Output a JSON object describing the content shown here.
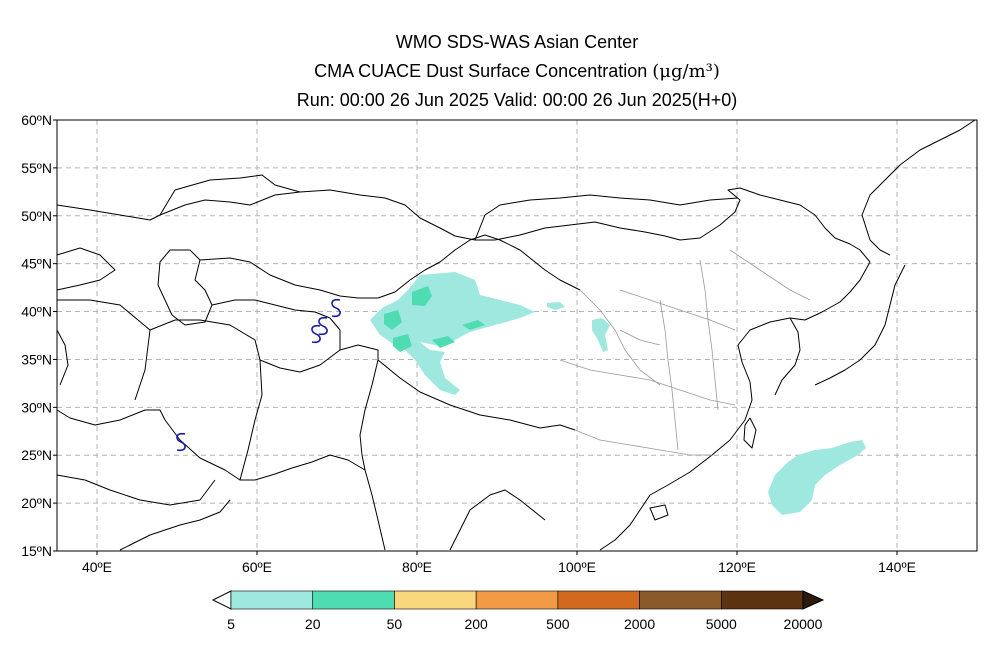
{
  "title": {
    "line1": "WMO SDS-WAS Asian Center",
    "line2": "CMA CUACE Dust Surface Concentration",
    "line2_unit": "(μg/m³)",
    "line3": "Run: 00:00 26 Jun 2025    Valid: 00:00 26 Jun 2025(H+0)"
  },
  "map": {
    "lon_range": [
      35,
      150
    ],
    "lat_range": [
      15,
      60
    ],
    "lon_ticks": [
      {
        "value": 40,
        "label": "40ºE"
      },
      {
        "value": 60,
        "label": "60ºE"
      },
      {
        "value": 80,
        "label": "80ºE"
      },
      {
        "value": 100,
        "label": "100ºE"
      },
      {
        "value": 120,
        "label": "120ºE"
      },
      {
        "value": 140,
        "label": "140ºE"
      }
    ],
    "lat_ticks": [
      {
        "value": 60,
        "label": "60ºN"
      },
      {
        "value": 55,
        "label": "55ºN"
      },
      {
        "value": 50,
        "label": "50ºN"
      },
      {
        "value": 45,
        "label": "45ºN"
      },
      {
        "value": 40,
        "label": "40ºN"
      },
      {
        "value": 35,
        "label": "35ºN"
      },
      {
        "value": 30,
        "label": "30ºN"
      },
      {
        "value": 25,
        "label": "25ºN"
      },
      {
        "value": 20,
        "label": "20ºN"
      },
      {
        "value": 15,
        "label": "15ºN"
      }
    ],
    "grid": true,
    "colors": {
      "frame": "#000000",
      "grid": "#b4b4b4",
      "country_border": "#000000",
      "province_border": "#999999",
      "station_marker": "#1b1bb0"
    }
  },
  "colorbar": {
    "bins": [
      {
        "color": "#9fe8df"
      },
      {
        "color": "#4fdcb2"
      },
      {
        "color": "#f9d77c"
      },
      {
        "color": "#f29a45"
      },
      {
        "color": "#d2691e"
      },
      {
        "color": "#8b5a2b"
      },
      {
        "color": "#5c3310"
      },
      {
        "color": "#2b1a0e"
      }
    ],
    "labels": [
      "5",
      "20",
      "50",
      "200",
      "500",
      "2000",
      "5000",
      "20000"
    ]
  }
}
